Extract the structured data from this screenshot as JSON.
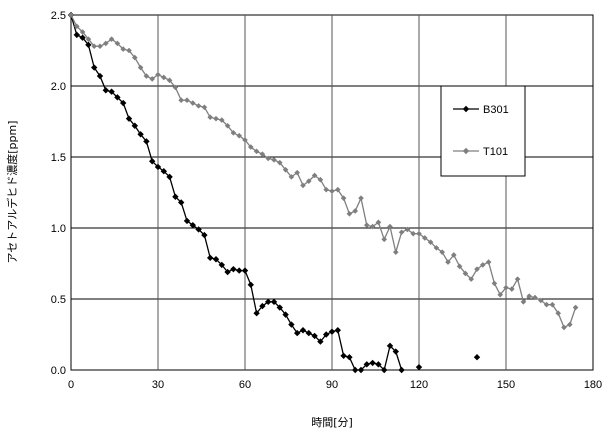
{
  "chart_data": {
    "type": "line",
    "xlabel": "時間[分]",
    "ylabel": "アセトアルデヒド濃度[ppm]",
    "xlim": [
      0,
      180
    ],
    "ylim": [
      0,
      2.5
    ],
    "x_ticks": [
      "0",
      "30",
      "60",
      "90",
      "120",
      "150",
      "180"
    ],
    "y_ticks": [
      "0.0",
      "0.5",
      "1.0",
      "1.5",
      "2.0",
      "2.5"
    ],
    "grid": "both",
    "legend_position": "right",
    "series": [
      {
        "name": "B301",
        "color": "#000000",
        "marker": "diamond",
        "points": [
          [
            0,
            2.5
          ],
          [
            2,
            2.36
          ],
          [
            4,
            2.34
          ],
          [
            6,
            2.29
          ],
          [
            8,
            2.13
          ],
          [
            10,
            2.07
          ],
          [
            12,
            1.97
          ],
          [
            14,
            1.96
          ],
          [
            16,
            1.92
          ],
          [
            18,
            1.88
          ],
          [
            20,
            1.77
          ],
          [
            22,
            1.72
          ],
          [
            24,
            1.66
          ],
          [
            26,
            1.61
          ],
          [
            28,
            1.47
          ],
          [
            30,
            1.43
          ],
          [
            32,
            1.4
          ],
          [
            34,
            1.36
          ],
          [
            36,
            1.22
          ],
          [
            38,
            1.18
          ],
          [
            40,
            1.05
          ],
          [
            42,
            1.02
          ],
          [
            44,
            0.99
          ],
          [
            46,
            0.95
          ],
          [
            48,
            0.79
          ],
          [
            50,
            0.78
          ],
          [
            52,
            0.74
          ],
          [
            54,
            0.69
          ],
          [
            56,
            0.71
          ],
          [
            58,
            0.7
          ],
          [
            60,
            0.7
          ],
          [
            62,
            0.6
          ],
          [
            64,
            0.4
          ],
          [
            66,
            0.45
          ],
          [
            68,
            0.48
          ],
          [
            70,
            0.48
          ],
          [
            72,
            0.44
          ],
          [
            74,
            0.39
          ],
          [
            76,
            0.32
          ],
          [
            78,
            0.26
          ],
          [
            80,
            0.28
          ],
          [
            82,
            0.26
          ],
          [
            84,
            0.24
          ],
          [
            86,
            0.2
          ],
          [
            88,
            0.25
          ],
          [
            90,
            0.27
          ],
          [
            92,
            0.28
          ],
          [
            94,
            0.1
          ],
          [
            96,
            0.09
          ],
          [
            98,
            0.0
          ],
          [
            100,
            0.0
          ],
          [
            102,
            0.04
          ],
          [
            104,
            0.05
          ],
          [
            106,
            0.04
          ],
          [
            108,
            0.0
          ],
          [
            110,
            0.17
          ],
          [
            112,
            0.13
          ],
          [
            114,
            0.0
          ]
        ],
        "extra_points": [
          [
            120,
            0.02
          ],
          [
            140,
            0.09
          ]
        ]
      },
      {
        "name": "T101",
        "color": "#7f7f7f",
        "marker": "diamond",
        "points": [
          [
            0,
            2.5
          ],
          [
            2,
            2.42
          ],
          [
            4,
            2.38
          ],
          [
            6,
            2.33
          ],
          [
            8,
            2.28
          ],
          [
            10,
            2.28
          ],
          [
            12,
            2.3
          ],
          [
            14,
            2.33
          ],
          [
            16,
            2.3
          ],
          [
            18,
            2.26
          ],
          [
            20,
            2.25
          ],
          [
            22,
            2.2
          ],
          [
            24,
            2.13
          ],
          [
            26,
            2.07
          ],
          [
            28,
            2.05
          ],
          [
            30,
            2.08
          ],
          [
            32,
            2.06
          ],
          [
            34,
            2.04
          ],
          [
            36,
            1.99
          ],
          [
            38,
            1.9
          ],
          [
            40,
            1.9
          ],
          [
            42,
            1.88
          ],
          [
            44,
            1.86
          ],
          [
            46,
            1.85
          ],
          [
            48,
            1.78
          ],
          [
            50,
            1.77
          ],
          [
            52,
            1.76
          ],
          [
            54,
            1.72
          ],
          [
            56,
            1.67
          ],
          [
            58,
            1.65
          ],
          [
            60,
            1.62
          ],
          [
            62,
            1.57
          ],
          [
            64,
            1.54
          ],
          [
            66,
            1.52
          ],
          [
            68,
            1.49
          ],
          [
            70,
            1.48
          ],
          [
            72,
            1.46
          ],
          [
            74,
            1.41
          ],
          [
            76,
            1.36
          ],
          [
            78,
            1.39
          ],
          [
            80,
            1.3
          ],
          [
            82,
            1.33
          ],
          [
            84,
            1.37
          ],
          [
            86,
            1.34
          ],
          [
            88,
            1.27
          ],
          [
            90,
            1.26
          ],
          [
            92,
            1.27
          ],
          [
            94,
            1.21
          ],
          [
            96,
            1.1
          ],
          [
            98,
            1.12
          ],
          [
            100,
            1.21
          ],
          [
            102,
            1.02
          ],
          [
            104,
            1.01
          ],
          [
            106,
            1.04
          ],
          [
            108,
            0.92
          ],
          [
            110,
            1.01
          ],
          [
            112,
            0.83
          ],
          [
            114,
            0.97
          ],
          [
            116,
            0.99
          ],
          [
            118,
            0.96
          ],
          [
            120,
            0.96
          ],
          [
            122,
            0.93
          ],
          [
            124,
            0.9
          ],
          [
            126,
            0.86
          ],
          [
            128,
            0.83
          ],
          [
            130,
            0.76
          ],
          [
            132,
            0.81
          ],
          [
            134,
            0.73
          ],
          [
            136,
            0.68
          ],
          [
            138,
            0.64
          ],
          [
            140,
            0.71
          ],
          [
            142,
            0.74
          ],
          [
            144,
            0.76
          ],
          [
            146,
            0.61
          ],
          [
            148,
            0.53
          ],
          [
            150,
            0.58
          ],
          [
            152,
            0.57
          ],
          [
            154,
            0.64
          ],
          [
            156,
            0.48
          ],
          [
            158,
            0.52
          ],
          [
            160,
            0.51
          ],
          [
            162,
            0.49
          ],
          [
            164,
            0.46
          ],
          [
            166,
            0.46
          ],
          [
            168,
            0.4
          ],
          [
            170,
            0.3
          ],
          [
            172,
            0.32
          ],
          [
            174,
            0.44
          ]
        ]
      }
    ]
  }
}
